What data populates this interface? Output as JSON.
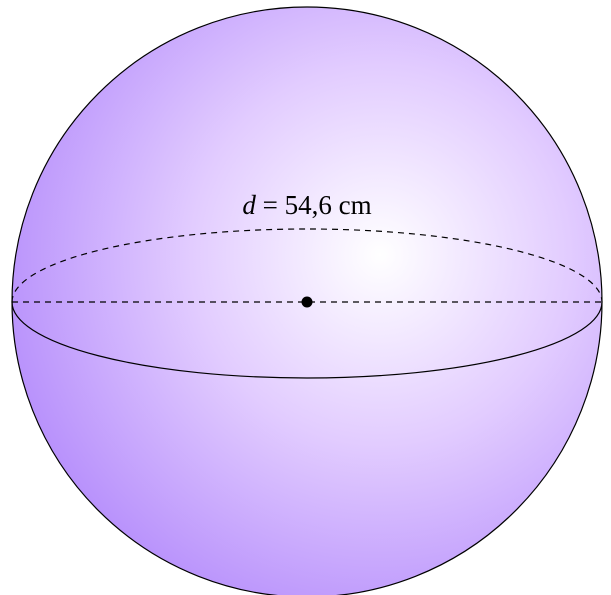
{
  "label": {
    "variable": "d",
    "equals": "=",
    "value": "54,6",
    "unit": "cm"
  }
}
